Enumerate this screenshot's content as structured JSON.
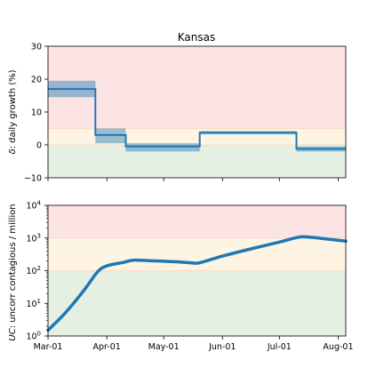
{
  "title": "Kansas",
  "colors": {
    "line": "#1f77b4",
    "band": "#1f77b4",
    "zone_red": "#fde4e4",
    "zone_yellow": "#fdf4e3",
    "zone_green": "#e5efe2",
    "zone_line": "#f6c8a8"
  },
  "chart_data": [
    {
      "type": "line",
      "ylabel_prefix": "δ",
      "ylabel_text": ": daily growth (%)",
      "ylim": [
        -10,
        30
      ],
      "yticks": [
        -10,
        0,
        10,
        20,
        30
      ],
      "ytick_labels": [
        "−10",
        "0",
        "10",
        "20",
        "30"
      ],
      "xlim": [
        "2020-03-01",
        "2020-08-05"
      ],
      "zones": [
        {
          "name": "red",
          "from": 5,
          "to": 30
        },
        {
          "name": "yellow",
          "from": 0,
          "to": 5
        },
        {
          "name": "green",
          "from": -10,
          "to": 0
        }
      ],
      "segments": [
        {
          "start": "2020-03-01",
          "end": "2020-03-26",
          "value": 17,
          "low": 14.5,
          "high": 19.5
        },
        {
          "start": "2020-03-26",
          "end": "2020-04-11",
          "value": 3,
          "low": 0.5,
          "high": 5
        },
        {
          "start": "2020-04-11",
          "end": "2020-05-20",
          "value": -0.5,
          "low": -2,
          "high": 0.5
        },
        {
          "start": "2020-05-20",
          "end": "2020-07-10",
          "value": 3.7,
          "low": 3.2,
          "high": 4.2
        },
        {
          "start": "2020-07-10",
          "end": "2020-08-05",
          "value": -1.2,
          "low": -2,
          "high": -0.5
        }
      ]
    },
    {
      "type": "line",
      "ylabel_prefix": "UC",
      "ylabel_text": ": uncorr contagious / million",
      "yscale": "log",
      "ylim": [
        1,
        10000
      ],
      "yticks": [
        1,
        10,
        100,
        1000,
        10000
      ],
      "ytick_labels": [
        {
          "base": "10",
          "exp": "0"
        },
        {
          "base": "10",
          "exp": "1"
        },
        {
          "base": "10",
          "exp": "2"
        },
        {
          "base": "10",
          "exp": "3"
        },
        {
          "base": "10",
          "exp": "4"
        }
      ],
      "xlim": [
        "2020-03-01",
        "2020-08-05"
      ],
      "xticks": [
        "2020-03-01",
        "2020-04-01",
        "2020-05-01",
        "2020-06-01",
        "2020-07-01",
        "2020-08-01"
      ],
      "xtick_labels": [
        "Mar-01",
        "Apr-01",
        "May-01",
        "Jun-01",
        "Jul-01",
        "Aug-01"
      ],
      "zones": [
        {
          "name": "red",
          "from": 1000,
          "to": 10000
        },
        {
          "name": "yellow",
          "from": 100,
          "to": 1000
        },
        {
          "name": "green",
          "from": 1,
          "to": 100
        }
      ],
      "series": [
        {
          "x": [
            "2020-03-01",
            "2020-03-10",
            "2020-03-20",
            "2020-03-27",
            "2020-04-01",
            "2020-04-10",
            "2020-04-15",
            "2020-04-25",
            "2020-05-05",
            "2020-05-15",
            "2020-05-20",
            "2020-06-01",
            "2020-06-15",
            "2020-07-01",
            "2020-07-10",
            "2020-07-15",
            "2020-07-25",
            "2020-08-05"
          ],
          "y": [
            1.5,
            5,
            25,
            90,
            140,
            180,
            210,
            200,
            190,
            175,
            175,
            280,
            450,
            750,
            1030,
            1080,
            950,
            800
          ]
        }
      ]
    }
  ]
}
